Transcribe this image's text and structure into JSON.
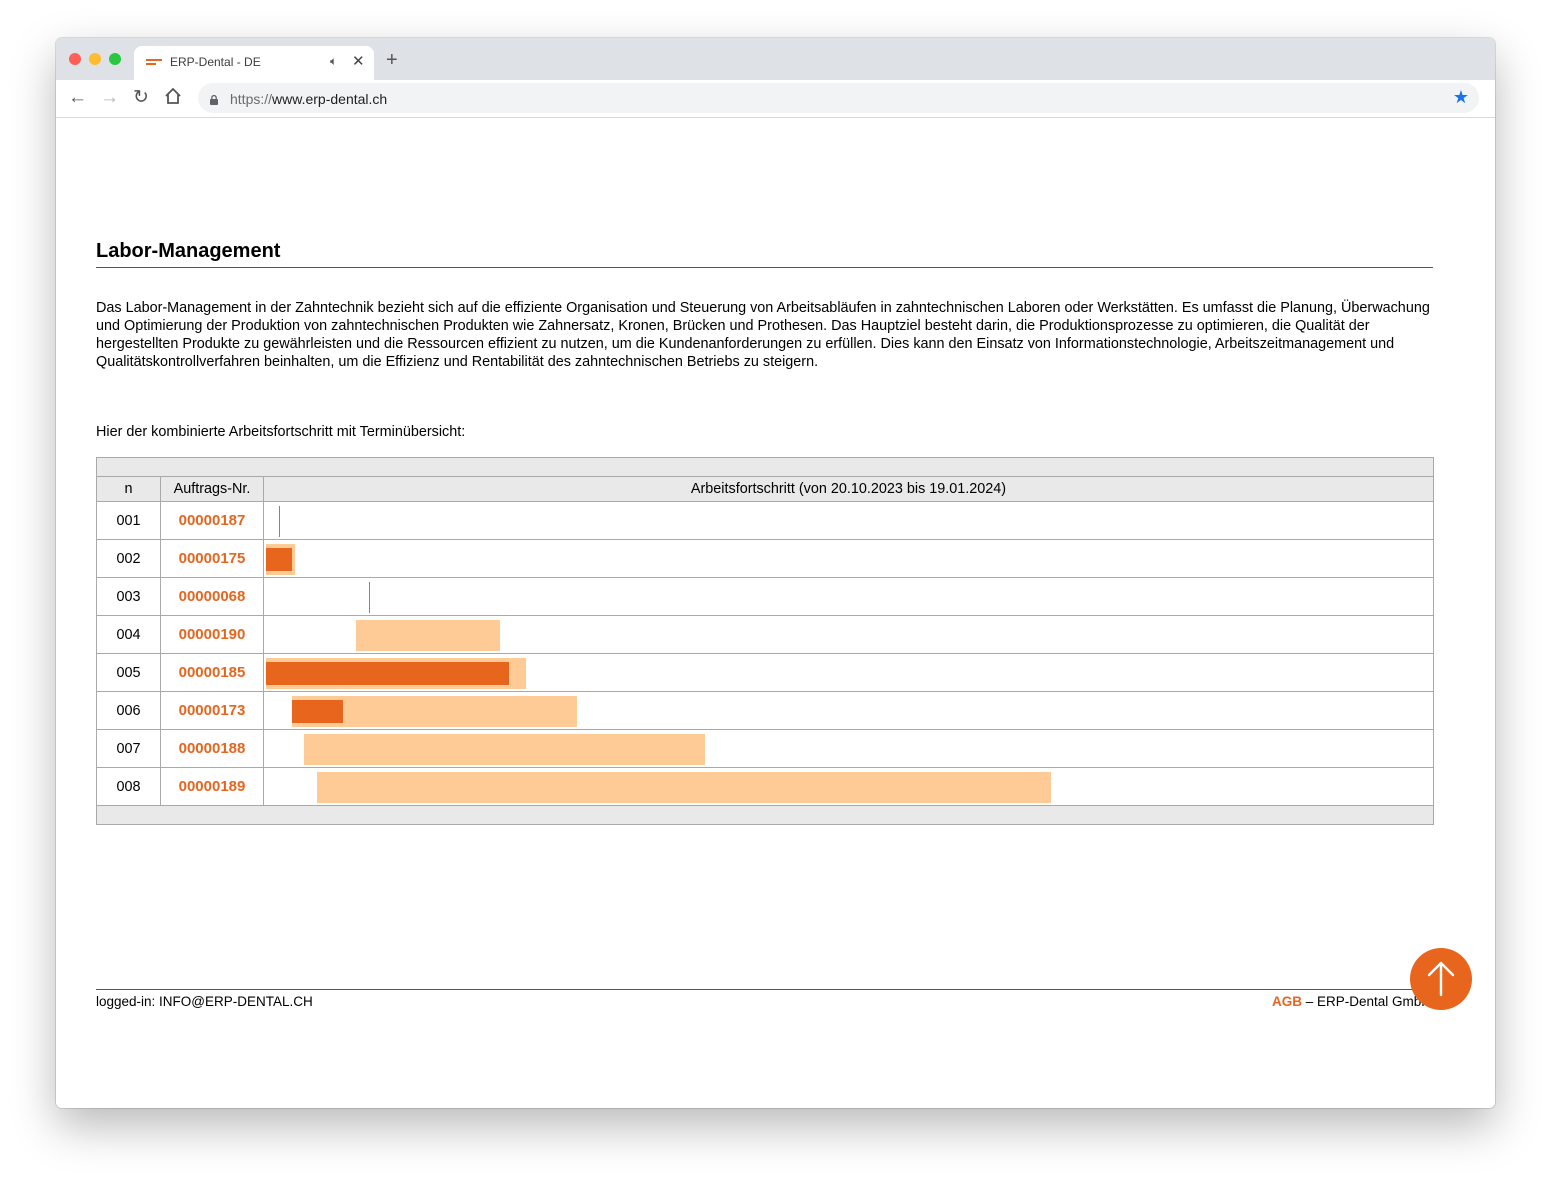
{
  "browser": {
    "tab_title": "ERP-Dental - DE",
    "tab_audio_icon": "speaker-icon",
    "tab_close": "✕",
    "new_tab": "+",
    "url_scheme": "https://",
    "url_host": "www.erp-dental.ch"
  },
  "page": {
    "title": "Labor-Management",
    "intro": "Das Labor-Management in der Zahntechnik bezieht sich auf die effiziente Organisation und Steuerung von Arbeitsabläufen in zahntechnischen Laboren oder Werkstätten. Es umfasst die Planung, Überwachung und Optimierung der Produktion von zahntechnischen Produkten wie Zahnersatz, Kronen, Brücken und Prothesen. Das Hauptziel besteht darin, die Produktionsprozesse zu optimieren, die Qualität der hergestellten Produkte zu gewährleisten und die Ressourcen effizient zu nutzen, um die Kundenanforderungen zu erfüllen. Dies kann den Einsatz von Informationstechnologie, Arbeitszeitmanagement und Qualitätskontrollverfahren beinhalten, um die Effizienz und Rentabilität des zahntechnischen Betriebs zu steigern.",
    "lead": "Hier der kombinierte Arbeitsfortschritt mit Terminübersicht:"
  },
  "table": {
    "col_n": "n",
    "col_order": "Auftrags-Nr.",
    "col_progress": "Arbeitsfortschritt (von 20.10.2023 bis 19.01.2024)"
  },
  "chart_data": {
    "type": "gantt",
    "x_range": [
      "2023-10-20",
      "2024-01-19"
    ],
    "colors": {
      "planned": "#fecb97",
      "done": "#e8651e"
    },
    "rows": [
      {
        "n": "001",
        "order": "00000187",
        "start": "2023-10-21",
        "end": "2023-10-21",
        "done_end": null
      },
      {
        "n": "002",
        "order": "00000175",
        "start": "2023-10-20",
        "end": "2023-10-22",
        "done_end": "2023-10-22"
      },
      {
        "n": "003",
        "order": "00000068",
        "start": "2023-10-28",
        "end": "2023-10-28",
        "done_end": null
      },
      {
        "n": "004",
        "order": "00000190",
        "start": "2023-10-27",
        "end": "2023-11-07",
        "done_end": null
      },
      {
        "n": "005",
        "order": "00000185",
        "start": "2023-10-20",
        "end": "2023-11-09",
        "done_end": "2023-11-08"
      },
      {
        "n": "006",
        "order": "00000173",
        "start": "2023-10-22",
        "end": "2023-11-13",
        "done_end": "2023-10-26"
      },
      {
        "n": "007",
        "order": "00000188",
        "start": "2023-10-23",
        "end": "2023-11-23",
        "done_end": null
      },
      {
        "n": "008",
        "order": "00000189",
        "start": "2023-10-24",
        "end": "2023-12-20",
        "done_end": null
      }
    ]
  },
  "footer": {
    "logged_in": "logged-in: INFO@ERP-DENTAL.CH",
    "agb": "AGB",
    "company": " – ERP-Dental GmbH"
  }
}
